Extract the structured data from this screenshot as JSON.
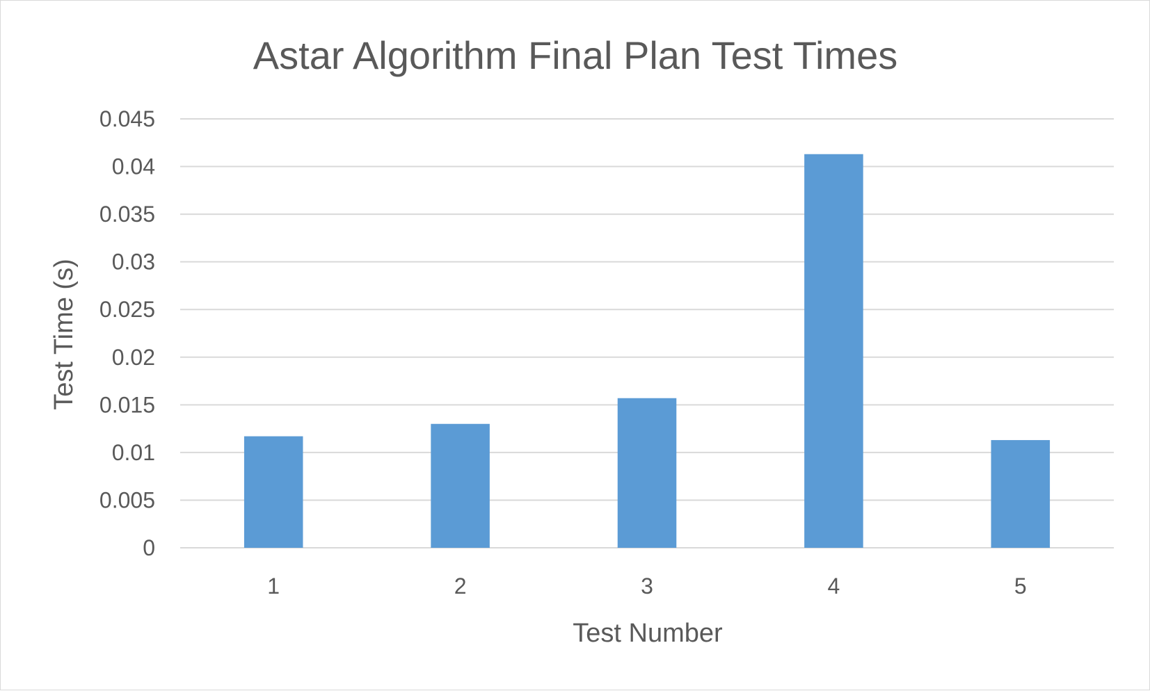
{
  "chart_data": {
    "type": "bar",
    "title": "Astar Algorithm Final Plan Test Times",
    "xlabel": "Test Number",
    "ylabel": "Test Time (s)",
    "categories": [
      "1",
      "2",
      "3",
      "4",
      "5"
    ],
    "values": [
      0.0117,
      0.013,
      0.0157,
      0.0413,
      0.0113
    ],
    "ylim": [
      0,
      0.045
    ],
    "yticks": [
      "0",
      "0.005",
      "0.01",
      "0.015",
      "0.02",
      "0.025",
      "0.03",
      "0.035",
      "0.04",
      "0.045"
    ],
    "grid": true,
    "legend": "none"
  },
  "colors": {
    "bar": "#5b9bd5",
    "grid": "#d9d9d9",
    "text": "#595959",
    "frame": "#d9d9d9"
  }
}
